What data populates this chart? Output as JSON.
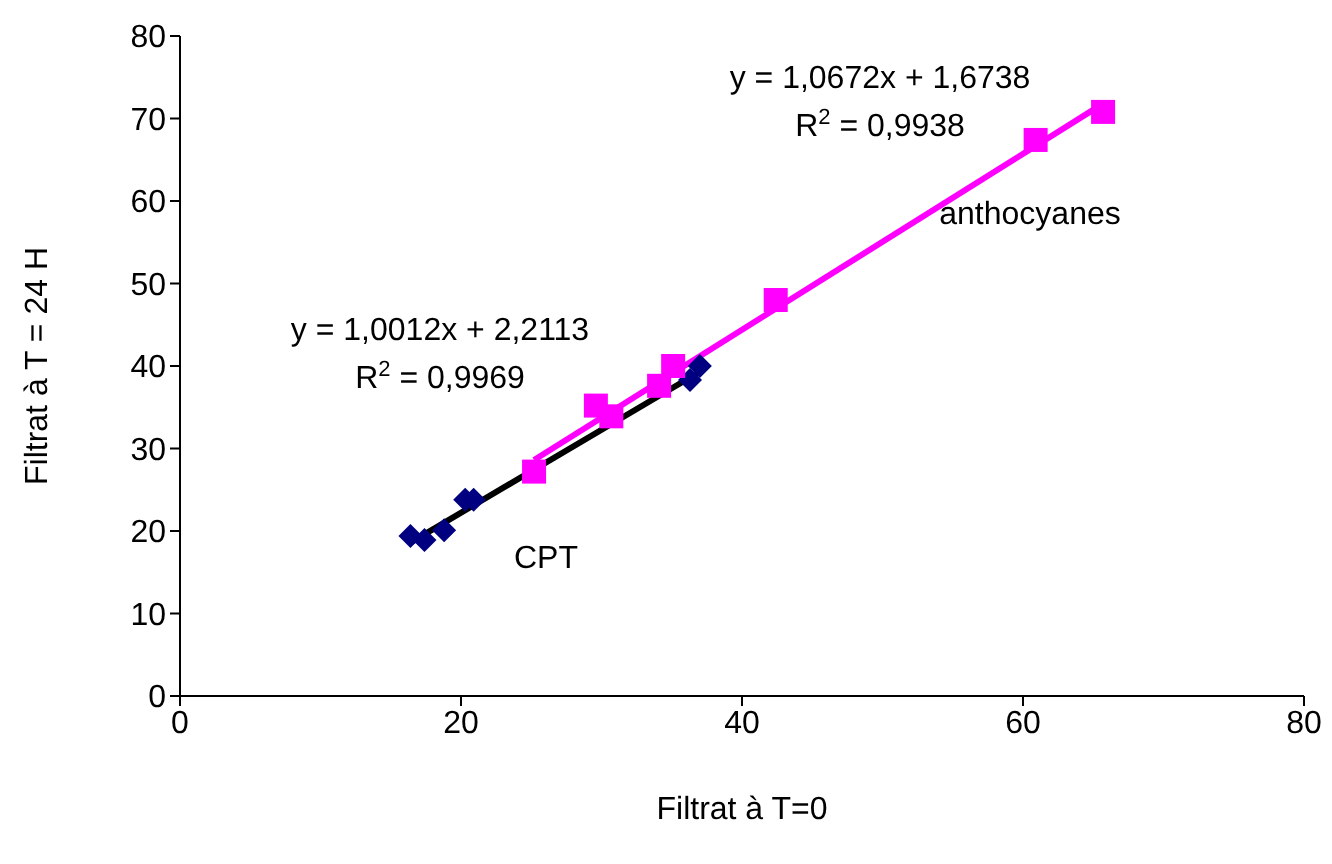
{
  "chart_data": {
    "type": "scatter",
    "xlabel": "Filtrat à T=0",
    "ylabel": "Filtrat à T = 24 H",
    "xlim": [
      0,
      80
    ],
    "xticks": [
      0,
      20,
      40,
      60,
      80
    ],
    "ylim": [
      0,
      80
    ],
    "yticks": [
      0,
      10,
      20,
      30,
      40,
      50,
      60,
      70,
      80
    ],
    "series": [
      {
        "name": "CPT",
        "marker": "diamond",
        "color": "#000080",
        "x": [
          16.4,
          17.4,
          18.8,
          20.3,
          20.9,
          36.3,
          37.0
        ],
        "values": [
          19.4,
          18.9,
          20.1,
          23.8,
          23.8,
          38.3,
          40.0
        ]
      },
      {
        "name": "anthocyanes",
        "marker": "square",
        "color": "#ff00ff",
        "x": [
          25.2,
          29.6,
          30.7,
          34.1,
          35.1,
          42.4,
          60.9,
          65.7
        ],
        "values": [
          27.2,
          35.2,
          33.9,
          37.6,
          40.0,
          48.0,
          67.4,
          70.8
        ]
      },
      {
        "type": "line",
        "marker": "none",
        "color": "#ff00ff",
        "x": [
          25.2,
          65.7
        ],
        "values": [
          28.6,
          71.8
        ]
      },
      {
        "type": "line",
        "marker": "none",
        "color": "#000000",
        "x": [
          16.4,
          37.0
        ],
        "values": [
          18.6,
          39.3
        ]
      }
    ],
    "annotations": [
      "y = 1,0672x + 1,6738",
      "R$^{2}$ = 0,9938",
      "y = 1,0012x + 2,2113",
      "R$^{2}$ = 0,9969"
    ]
  }
}
